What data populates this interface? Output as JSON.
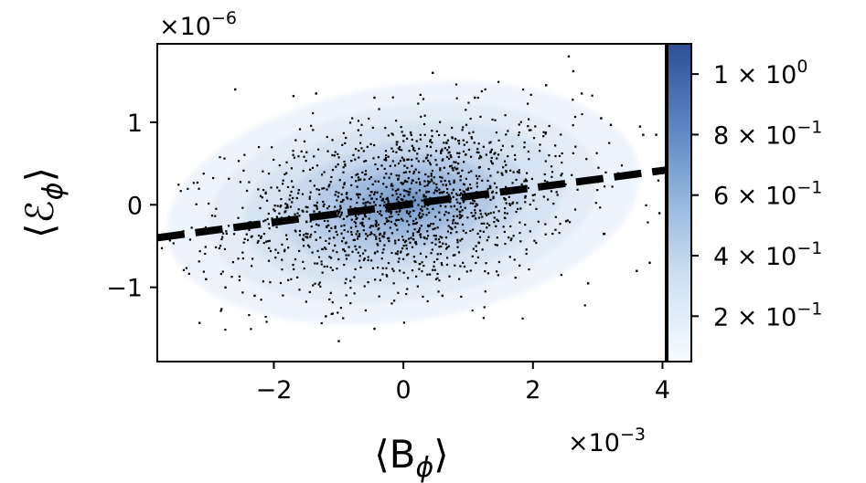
{
  "chart_data": {
    "type": "scatter",
    "title": "",
    "xlabel_pre": "⟨B",
    "xlabel_sub": "ϕ",
    "xlabel_post": "⟩",
    "ylabel_pre": "⟨ℰ",
    "ylabel_sub": "ϕ",
    "ylabel_post": "⟩",
    "x_offset_text": {
      "base": "×10",
      "exp": "−3"
    },
    "y_offset_text": {
      "base": "×10",
      "exp": "−6"
    },
    "xlim": [
      -3.8,
      4.05
    ],
    "ylim": [
      -1.9,
      1.95
    ],
    "x_ticks": [
      {
        "value": -2,
        "label": "−2"
      },
      {
        "value": 0,
        "label": "0"
      },
      {
        "value": 2,
        "label": "2"
      },
      {
        "value": 4,
        "label": "4"
      }
    ],
    "y_ticks": [
      {
        "value": 1,
        "label": "1"
      },
      {
        "value": 0,
        "label": "0"
      },
      {
        "value": -1,
        "label": "−1"
      }
    ],
    "fit_line": {
      "style": "dashed",
      "color": "#000000",
      "points": [
        [
          -3.8,
          -0.4
        ],
        [
          4.05,
          0.42
        ]
      ]
    },
    "density": {
      "cmap": "Blues",
      "peak_x": 0.0,
      "peak_y": 0.02,
      "sigma_x": 1.6,
      "sigma_y": 0.62,
      "correlation": 0.3
    },
    "points_sample": [
      [
        -3.15,
        -1.43
      ],
      [
        -2.6,
        1.4
      ],
      [
        -1.7,
        1.32
      ],
      [
        -1.35,
        1.35
      ],
      [
        -0.45,
        1.3
      ],
      [
        0.45,
        1.6
      ],
      [
        1.1,
        1.3
      ],
      [
        2.2,
        1.45
      ],
      [
        2.55,
        1.8
      ],
      [
        2.62,
        1.62
      ],
      [
        2.75,
        1.35
      ],
      [
        3.05,
        1.05
      ],
      [
        3.2,
        0.97
      ],
      [
        3.65,
        0.95
      ],
      [
        3.7,
        0.85
      ],
      [
        3.9,
        0.85
      ],
      [
        3.1,
        -0.35
      ],
      [
        3.95,
        -0.1
      ],
      [
        3.8,
        -0.7
      ],
      [
        3.6,
        -0.8
      ],
      [
        2.85,
        -0.95
      ],
      [
        -1.0,
        -1.65
      ],
      [
        -0.45,
        -1.5
      ],
      [
        -1.2,
        -1.35
      ],
      [
        0.6,
        -1.1
      ],
      [
        -2.3,
        -1.1
      ],
      [
        -2.75,
        -1.0
      ],
      [
        -3.05,
        -0.9
      ]
    ],
    "colorbar": {
      "range": [
        0.05,
        1.1
      ],
      "cmap": "Blues",
      "ticks": [
        {
          "value": 1.0,
          "base": "1 × 10",
          "exp": "0"
        },
        {
          "value": 0.8,
          "base": "8 × 10",
          "exp": "−1"
        },
        {
          "value": 0.6,
          "base": "6 × 10",
          "exp": "−1"
        },
        {
          "value": 0.4,
          "base": "4 × 10",
          "exp": "−1"
        },
        {
          "value": 0.2,
          "base": "2 × 10",
          "exp": "−1"
        }
      ]
    },
    "grid": false,
    "legend": "none"
  }
}
